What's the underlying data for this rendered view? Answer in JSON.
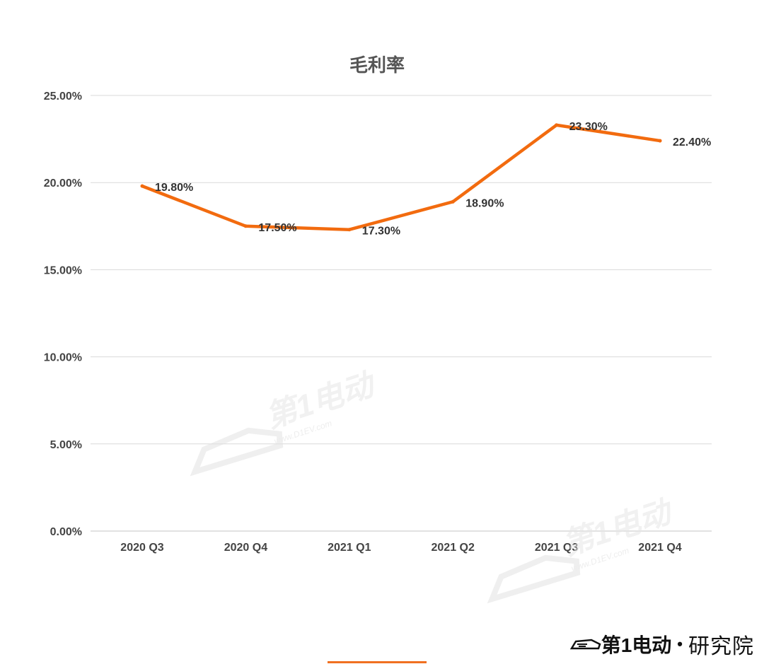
{
  "chart_data": {
    "type": "line",
    "title": "毛利率",
    "categories": [
      "2020 Q3",
      "2020 Q4",
      "2021 Q1",
      "2021 Q2",
      "2021 Q3",
      "2021 Q4"
    ],
    "series": [
      {
        "values": [
          19.8,
          17.5,
          17.3,
          18.9,
          23.3,
          22.4
        ],
        "labels": [
          "19.80%",
          "17.50%",
          "17.30%",
          "18.90%",
          "23.30%",
          "22.40%"
        ],
        "color": "#f26b0f"
      }
    ],
    "ylim": [
      0,
      25
    ],
    "yticks": [
      "0.00%",
      "5.00%",
      "10.00%",
      "15.00%",
      "20.00%",
      "25.00%"
    ],
    "grid": true,
    "legend": "none"
  },
  "watermark": {
    "text": "第1电动",
    "url": "www.D1EV.com"
  },
  "brand": {
    "logo": "第1电动",
    "separator": "•",
    "name": "研究院"
  },
  "colors": {
    "line": "#f26b0f",
    "grid": "#d9d9d9",
    "accent": "#f07020"
  }
}
